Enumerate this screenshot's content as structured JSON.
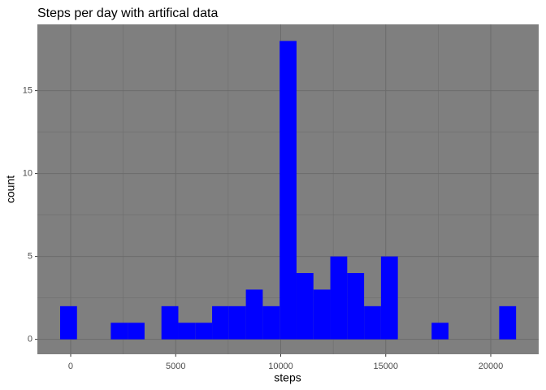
{
  "chart_data": {
    "type": "histogram",
    "title": "Steps per day with artifical data",
    "x_label": "steps",
    "y_label": "count",
    "color": "#0000ff",
    "bins": [
      -503,
      301,
      1105,
      1909,
      2713,
      3517,
      4321,
      5125,
      5929,
      6733,
      7537,
      8341,
      9145,
      9949,
      10753,
      11557,
      12361,
      13165,
      13969,
      14773,
      15577,
      16381,
      17185,
      17989,
      18793,
      19597,
      20401,
      21205
    ],
    "values": [
      2,
      0,
      0,
      1,
      1,
      0,
      2,
      1,
      1,
      2,
      2,
      3,
      2,
      18,
      4,
      3,
      5,
      4,
      2,
      5,
      0,
      0,
      1,
      0,
      0,
      0,
      2
    ],
    "xlim": [
      -1586,
      22282
    ],
    "ylim": [
      -0.9,
      19
    ],
    "xticks": [
      0,
      5000,
      10000,
      15000,
      20000
    ],
    "yticks": [
      0,
      5,
      10,
      15
    ],
    "grid": true,
    "panel_color": "#7f7f7f",
    "grid_color": "#6b6b6b"
  }
}
